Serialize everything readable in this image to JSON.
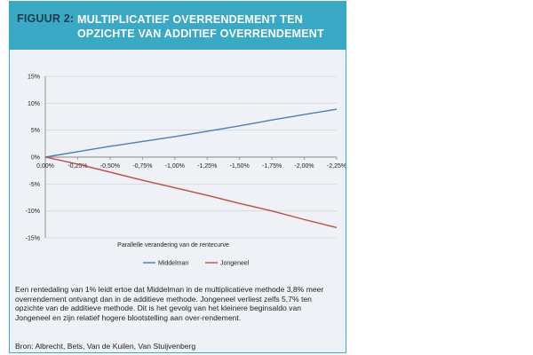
{
  "figure": {
    "label": "FIGUUR 2:",
    "title": "MULTIPLICATIEF OVERRENDEMENT TEN OPZICHTE VAN ADDITIEF OVERRENDEMENT",
    "caption": "Een rentedaling van 1% leidt ertoe dat Middelman in de multiplicatieve methode 3,8% meer overrendement ontvangt dan in de additieve methode. Jongeneel verliest zelfs 5,7% ten opzichte van de additieve methode. Dit is het gevolg van het kleinere beginsaldo van Jongeneel en zijn relatief hogere blootstelling aan over-rendement.",
    "source": "Bron: Albrecht, Bets, Van de Kuilen, Van Stuijvenberg"
  },
  "chart_data": {
    "type": "line",
    "title": "",
    "xlabel": "Parallelle verandering van de rentecurve",
    "ylabel": "",
    "x": [
      0,
      -0.25,
      -0.5,
      -0.75,
      -1.0,
      -1.25,
      -1.5,
      -1.75,
      -2.0,
      -2.25
    ],
    "x_tick_labels": [
      "0,00%",
      "-0,25%",
      "-0,50%",
      "-0,75%",
      "-1,00%",
      "-1,25%",
      "-1,50%",
      "-1,75%",
      "-2,00%",
      "-2,25%"
    ],
    "y_ticks": [
      15,
      10,
      5,
      0,
      -5,
      -10,
      -15
    ],
    "y_tick_labels": [
      "15%",
      "10%",
      "5%",
      "0%",
      "-5%",
      "-10%",
      "-15%"
    ],
    "ylim": [
      -15,
      15
    ],
    "xlim": [
      0,
      -2.25
    ],
    "grid": "horizontal",
    "legend_position": "bottom",
    "series": [
      {
        "name": "Middelman",
        "color": "#4a7ebb",
        "values": [
          0,
          1.0,
          2.0,
          2.9,
          3.8,
          4.8,
          5.8,
          6.9,
          7.9,
          8.9
        ]
      },
      {
        "name": "Jongeneel",
        "color": "#be4b48",
        "values": [
          0,
          -1.3,
          -2.8,
          -4.3,
          -5.7,
          -7.1,
          -8.6,
          -10.0,
          -11.6,
          -13.1
        ]
      }
    ]
  }
}
